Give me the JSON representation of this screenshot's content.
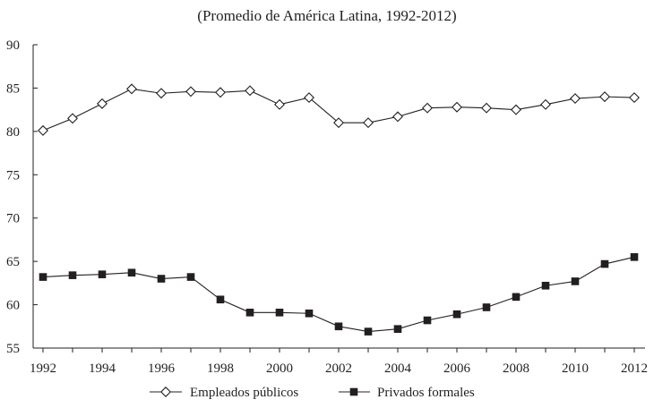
{
  "chart_data": {
    "type": "line",
    "title": "",
    "subtitle": "(Promedio de América Latina, 1992-2012)",
    "xlabel": "",
    "ylabel": "",
    "x": [
      1992,
      1993,
      1994,
      1995,
      1996,
      1997,
      1998,
      1999,
      2000,
      2001,
      2002,
      2003,
      2004,
      2005,
      2006,
      2007,
      2008,
      2009,
      2010,
      2011,
      2012
    ],
    "x_tick_labels": [
      "1992",
      "1994",
      "1996",
      "1998",
      "2000",
      "2002",
      "2004",
      "2006",
      "2008",
      "2010",
      "2012"
    ],
    "x_tick_values": [
      1992,
      1994,
      1996,
      1998,
      2000,
      2002,
      2004,
      2006,
      2008,
      2010,
      2012
    ],
    "xlim": [
      1992,
      2012
    ],
    "ylim": [
      55,
      90
    ],
    "y_tick_labels": [
      "55",
      "60",
      "65",
      "70",
      "75",
      "80",
      "85",
      "90"
    ],
    "y_tick_values": [
      55,
      60,
      65,
      70,
      75,
      80,
      85,
      90
    ],
    "grid": false,
    "legend_position": "bottom",
    "series": [
      {
        "name": "Empleados públicos",
        "marker": "diamond-open",
        "values": [
          80.1,
          81.5,
          83.2,
          84.9,
          84.4,
          84.6,
          84.5,
          84.7,
          83.1,
          83.9,
          81.0,
          81.0,
          81.7,
          82.7,
          82.8,
          82.7,
          82.5,
          83.1,
          83.8,
          84.0,
          83.9
        ]
      },
      {
        "name": "Privados formales",
        "marker": "square-filled",
        "values": [
          63.2,
          63.4,
          63.5,
          63.7,
          63.0,
          63.2,
          60.6,
          59.1,
          59.1,
          59.0,
          57.5,
          56.9,
          57.2,
          58.2,
          58.9,
          59.7,
          60.9,
          62.2,
          62.7,
          64.7,
          65.5
        ]
      }
    ]
  },
  "colors": {
    "line": "#231f20",
    "marker_fill_open": "#ffffff",
    "marker_fill_filled": "#231f20"
  }
}
